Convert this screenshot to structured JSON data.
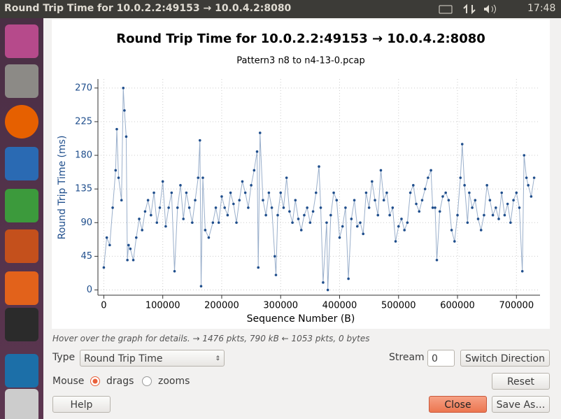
{
  "topbar": {
    "window_title": "Round Trip Time for 10.0.2.2:49153 → 10.0.4.2:8080",
    "clock": "17:48"
  },
  "chart_data": {
    "type": "line",
    "title": "Round Trip Time for 10.0.2.2:49153 → 10.0.4.2:8080",
    "subtitle": "Pattern3 n8 to n4-13-0.pcap",
    "x_label": "Sequence Number (B)",
    "y_label": "Round Trip Time (ms)",
    "color": "#1f4e8c",
    "grid": true,
    "xlim": [
      -10000,
      740000
    ],
    "ylim": [
      -7,
      282
    ],
    "xticks": [
      0,
      100000,
      200000,
      300000,
      400000,
      500000,
      600000,
      700000
    ],
    "yticks": [
      0,
      45,
      90,
      135,
      180,
      225,
      270
    ],
    "x": [
      0,
      5000,
      10000,
      15000,
      20000,
      22000,
      25000,
      30000,
      33000,
      35000,
      38000,
      40000,
      42000,
      45000,
      50000,
      55000,
      60000,
      65000,
      70000,
      75000,
      80000,
      85000,
      90000,
      95000,
      100000,
      105000,
      110000,
      115000,
      120000,
      125000,
      130000,
      135000,
      140000,
      145000,
      150000,
      155000,
      160000,
      163000,
      165000,
      168000,
      172000,
      178000,
      185000,
      190000,
      195000,
      200000,
      205000,
      210000,
      215000,
      220000,
      225000,
      230000,
      235000,
      240000,
      245000,
      250000,
      255000,
      260000,
      262000,
      265000,
      270000,
      275000,
      280000,
      285000,
      290000,
      292000,
      295000,
      300000,
      305000,
      310000,
      315000,
      320000,
      325000,
      330000,
      335000,
      340000,
      345000,
      350000,
      355000,
      360000,
      365000,
      368000,
      372000,
      378000,
      380000,
      385000,
      390000,
      395000,
      400000,
      405000,
      410000,
      415000,
      420000,
      425000,
      430000,
      435000,
      440000,
      445000,
      450000,
      455000,
      460000,
      465000,
      470000,
      475000,
      480000,
      485000,
      490000,
      495000,
      500000,
      505000,
      510000,
      515000,
      520000,
      525000,
      530000,
      535000,
      540000,
      545000,
      550000,
      555000,
      558000,
      562000,
      565000,
      570000,
      575000,
      580000,
      585000,
      590000,
      595000,
      600000,
      605000,
      608000,
      612000,
      617000,
      620000,
      625000,
      630000,
      635000,
      640000,
      645000,
      650000,
      655000,
      660000,
      665000,
      670000,
      675000,
      680000,
      685000,
      690000,
      695000,
      700000,
      705000,
      710000,
      713000,
      717000,
      720000,
      725000,
      730000
    ],
    "values": [
      30,
      70,
      60,
      110,
      160,
      215,
      150,
      120,
      270,
      240,
      205,
      40,
      60,
      55,
      40,
      70,
      95,
      80,
      105,
      120,
      100,
      130,
      90,
      110,
      145,
      85,
      110,
      130,
      25,
      110,
      140,
      95,
      130,
      110,
      90,
      120,
      150,
      200,
      5,
      150,
      80,
      70,
      90,
      110,
      90,
      125,
      110,
      100,
      130,
      115,
      90,
      120,
      145,
      130,
      110,
      140,
      160,
      185,
      30,
      210,
      120,
      100,
      130,
      110,
      45,
      20,
      100,
      130,
      110,
      150,
      105,
      90,
      120,
      95,
      80,
      100,
      110,
      90,
      105,
      130,
      165,
      110,
      10,
      90,
      0,
      100,
      130,
      120,
      70,
      85,
      110,
      15,
      95,
      120,
      85,
      90,
      75,
      130,
      110,
      145,
      120,
      100,
      160,
      120,
      130,
      100,
      110,
      65,
      85,
      95,
      80,
      90,
      130,
      140,
      115,
      105,
      120,
      135,
      150,
      160,
      110,
      110,
      40,
      105,
      125,
      130,
      120,
      80,
      65,
      100,
      150,
      195,
      140,
      90,
      130,
      110,
      120,
      95,
      80,
      100,
      140,
      120,
      100,
      110,
      95,
      130,
      100,
      115,
      90,
      120,
      130,
      110,
      25,
      180,
      150,
      140,
      125,
      150
    ]
  },
  "hint": "Hover over the graph for details. → 1476 pkts, 790 kB ← 1053 pkts, 0 bytes",
  "controls": {
    "type_label": "Type",
    "type_value": "Round Trip Time",
    "stream_label": "Stream",
    "stream_value": "0",
    "switch_direction": "Switch Direction",
    "mouse_label": "Mouse",
    "drags": "drags",
    "zooms": "zooms",
    "reset": "Reset",
    "help": "Help",
    "close": "Close",
    "save_as": "Save As…"
  }
}
